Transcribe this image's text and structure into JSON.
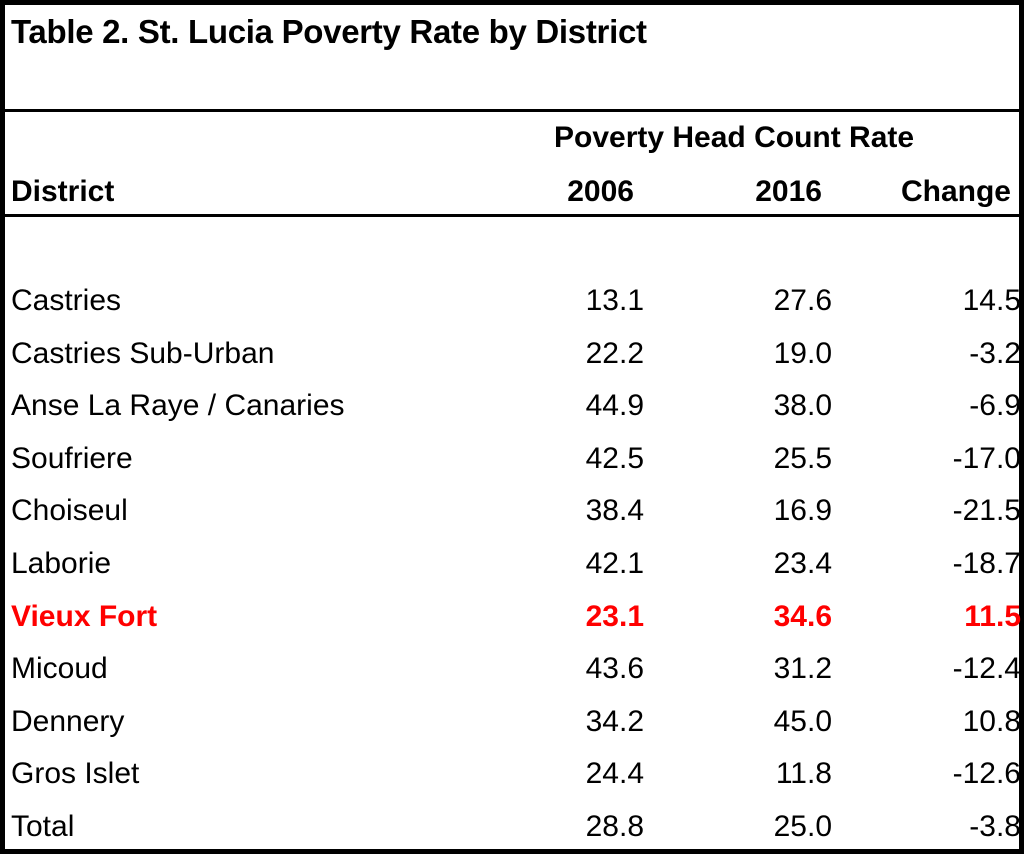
{
  "title": "Table 2. St. Lucia Poverty Rate by District",
  "superheader": "Poverty Head Count Rate",
  "headers": {
    "district": "District",
    "col1": "2006",
    "col2": "2016",
    "col3": "Change"
  },
  "highlight_color": "#ff0000",
  "rows": [
    {
      "district": "Castries",
      "y2006": "13.1",
      "y2016": "27.6",
      "change": "14.5"
    },
    {
      "district": "Castries Sub-Urban",
      "y2006": "22.2",
      "y2016": "19.0",
      "change": "-3.2"
    },
    {
      "district": "Anse La Raye / Canaries",
      "y2006": "44.9",
      "y2016": "38.0",
      "change": "-6.9"
    },
    {
      "district": "Soufriere",
      "y2006": "42.5",
      "y2016": "25.5",
      "change": "-17.0"
    },
    {
      "district": "Choiseul",
      "y2006": "38.4",
      "y2016": "16.9",
      "change": "-21.5"
    },
    {
      "district": "Laborie",
      "y2006": "42.1",
      "y2016": "23.4",
      "change": "-18.7"
    },
    {
      "district": "Vieux Fort",
      "y2006": "23.1",
      "y2016": "34.6",
      "change": "11.5",
      "highlighted": true
    },
    {
      "district": "Micoud",
      "y2006": "43.6",
      "y2016": "31.2",
      "change": "-12.4"
    },
    {
      "district": "Dennery",
      "y2006": "34.2",
      "y2016": "45.0",
      "change": "10.8"
    },
    {
      "district": "Gros Islet",
      "y2006": "24.4",
      "y2016": "11.8",
      "change": "-12.6"
    },
    {
      "district": "Total",
      "y2006": "28.8",
      "y2016": "25.0",
      "change": "-3.8"
    }
  ]
}
